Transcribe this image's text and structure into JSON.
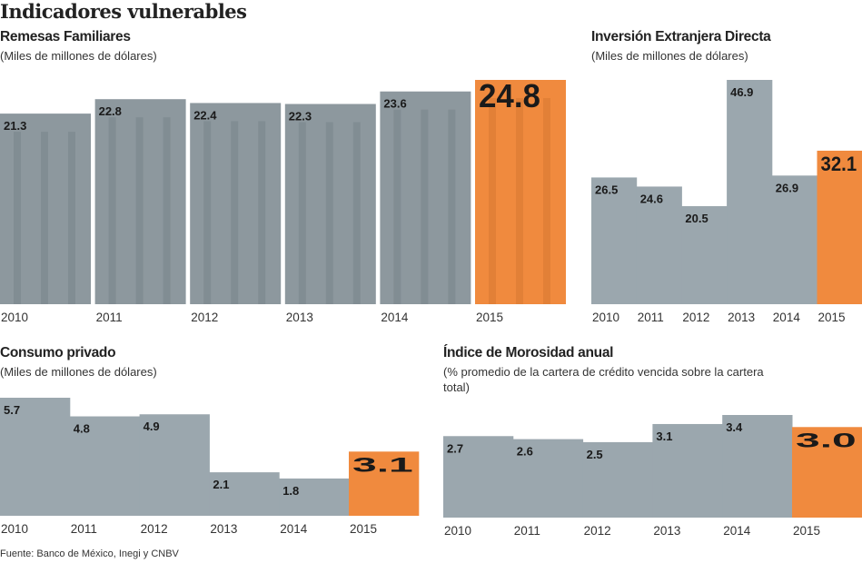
{
  "title": "Indicadores vulnerables",
  "source": "Fuente: Banco de México, Inegi y CNBV",
  "colors": {
    "bar": "#9ba7ae",
    "highlight": "#f08a3e",
    "photo_bar": "#8d989e"
  },
  "chart_data": [
    {
      "type": "bar",
      "title": "Remesas Familiares",
      "subtitle": "(Miles de millones de dólares)",
      "categories": [
        "2010",
        "2011",
        "2012",
        "2013",
        "2014",
        "2015"
      ],
      "values": [
        21.3,
        22.8,
        22.4,
        22.3,
        23.6,
        24.8
      ],
      "highlight": "2015",
      "ylim": [
        1.5,
        24.8
      ],
      "grid": false
    },
    {
      "type": "bar",
      "title": "Inversión Extranjera Directa",
      "subtitle": "(Miles de millones de dólares)",
      "categories": [
        "2010",
        "2011",
        "2012",
        "2013",
        "2014",
        "2015"
      ],
      "values": [
        26.5,
        24.6,
        20.5,
        46.9,
        26.9,
        32.1
      ],
      "highlight": "2015",
      "ylim": [
        0,
        46.9
      ],
      "grid": false
    },
    {
      "type": "bar",
      "title": "Consumo privado",
      "subtitle": "(Miles de millones de dólares)",
      "categories": [
        "2010",
        "2011",
        "2012",
        "2013",
        "2014",
        "2015"
      ],
      "values": [
        5.7,
        4.8,
        4.9,
        2.1,
        1.8,
        3.1
      ],
      "highlight": "2015",
      "ylim": [
        0,
        5.7
      ],
      "grid": false
    },
    {
      "type": "bar",
      "title": "Índice de Morosidad anual",
      "subtitle": "(% promedio de la cartera de crédito vencida sobre la cartera total)",
      "categories": [
        "2010",
        "2011",
        "2012",
        "2013",
        "2014",
        "2015"
      ],
      "values": [
        2.7,
        2.6,
        2.5,
        3.1,
        3.4,
        3.0
      ],
      "highlight": "2015",
      "ylim": [
        0,
        3.4
      ],
      "grid": false
    }
  ]
}
